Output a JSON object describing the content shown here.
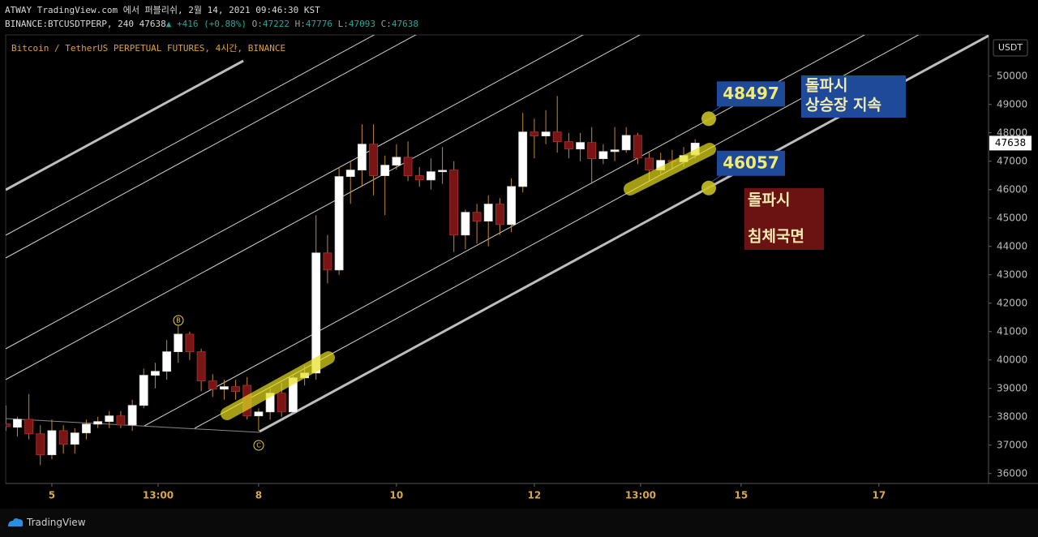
{
  "header": {
    "line1": "ATWAY TradingView.com 에서 퍼블리쉬, 2월 14, 2021 09:46:30 KST",
    "symbol": "BINANCE:BTCUSDTPERP, 240",
    "last": "47638",
    "arrow": "▲",
    "change": "+416 (+0.88%)",
    "ohlc": [
      {
        "label": "O:",
        "value": "47222"
      },
      {
        "label": "H:",
        "value": "47776"
      },
      {
        "label": "L:",
        "value": "47093"
      },
      {
        "label": "C:",
        "value": "47638"
      }
    ]
  },
  "chart_data": {
    "type": "candlestick",
    "title": "Bitcoin / TetherUS PERPETUAL FUTURES, 4시간, BINANCE",
    "currency": "USDT",
    "x": [
      4.333,
      4.5,
      4.667,
      4.833,
      5,
      5.167,
      5.333,
      5.5,
      5.667,
      5.833,
      6,
      6.167,
      6.333,
      6.5,
      6.667,
      6.833,
      7,
      7.167,
      7.333,
      7.5,
      7.667,
      7.833,
      8,
      8.167,
      8.333,
      8.5,
      8.667,
      8.833,
      9,
      9.167,
      9.333,
      9.5,
      9.667,
      9.833,
      10,
      10.167,
      10.333,
      10.5,
      10.667,
      10.833,
      11,
      11.167,
      11.333,
      11.5,
      11.667,
      11.833,
      12,
      12.167,
      12.333,
      12.5,
      12.667,
      12.833,
      13,
      13.167,
      13.333,
      13.5,
      13.667,
      13.833,
      14,
      14.167,
      14.333
    ],
    "open": [
      37750,
      37630,
      37910,
      37400,
      36660,
      37510,
      37030,
      37430,
      37740,
      37830,
      38030,
      37710,
      38400,
      39460,
      39600,
      40290,
      40910,
      40290,
      39260,
      38970,
      39060,
      39110,
      38030,
      38170,
      38830,
      38170,
      39370,
      39540,
      43770,
      43170,
      46460,
      46690,
      47600,
      46490,
      46860,
      47140,
      46490,
      46340,
      46630,
      46690,
      44400,
      45200,
      44890,
      45490,
      44770,
      46110,
      48030,
      47890,
      48030,
      47690,
      47430,
      47660,
      47090,
      47340,
      47400,
      47910,
      47110,
      46690,
      47030,
      46980,
      47222
    ],
    "high": [
      38400,
      38000,
      38800,
      37700,
      37900,
      37700,
      37600,
      37900,
      38000,
      38200,
      38200,
      38600,
      39700,
      39900,
      40700,
      41200,
      41000,
      40400,
      39500,
      39300,
      39300,
      39400,
      38300,
      39000,
      39200,
      39500,
      39800,
      45100,
      44400,
      46800,
      47000,
      48300,
      48300,
      47200,
      47600,
      47700,
      46800,
      47100,
      47500,
      47000,
      45300,
      45500,
      45800,
      45700,
      46400,
      48700,
      48500,
      48800,
      49300,
      48000,
      48000,
      48200,
      47600,
      48200,
      48200,
      48000,
      47300,
      47300,
      47400,
      47500,
      47776
    ],
    "low": [
      37500,
      37300,
      37200,
      36300,
      36500,
      36700,
      36700,
      37200,
      37600,
      37600,
      37600,
      37500,
      38300,
      39000,
      39300,
      39900,
      40000,
      38900,
      38700,
      38600,
      38600,
      37900,
      37500,
      37900,
      38000,
      38100,
      39100,
      39300,
      42700,
      43000,
      45500,
      46100,
      45800,
      45100,
      46700,
      46300,
      46100,
      46000,
      46200,
      43800,
      43900,
      44100,
      44000,
      44400,
      44500,
      45900,
      47100,
      47600,
      47300,
      47100,
      47000,
      46200,
      46900,
      47000,
      47300,
      46900,
      46300,
      46500,
      46700,
      46800,
      47093
    ],
    "close": [
      37650,
      37910,
      37400,
      36660,
      37510,
      37030,
      37430,
      37740,
      37830,
      38030,
      37710,
      38400,
      39460,
      39600,
      40290,
      40910,
      40290,
      39260,
      38970,
      39060,
      38890,
      38030,
      38170,
      38830,
      38170,
      39370,
      39540,
      43770,
      43170,
      46460,
      46690,
      47600,
      46490,
      46860,
      47140,
      46490,
      46340,
      46630,
      46680,
      44400,
      45200,
      44890,
      45490,
      44770,
      46110,
      48030,
      47890,
      48030,
      47690,
      47430,
      47660,
      47090,
      47340,
      47400,
      47910,
      47110,
      46690,
      47030,
      46980,
      47200,
      47638
    ],
    "up_color": "#ffffff",
    "down_color": "#7a1515",
    "wick_color": "#c08a30",
    "xlim": [
      4.33,
      18.59
    ],
    "ylim": [
      35650,
      51450
    ],
    "xticks": [
      {
        "value": 5,
        "label": "5"
      },
      {
        "value": 6.5417,
        "label": "13:00"
      },
      {
        "value": 8,
        "label": "8"
      },
      {
        "value": 10,
        "label": "10"
      },
      {
        "value": 12,
        "label": "12"
      },
      {
        "value": 13.5417,
        "label": "13:00"
      },
      {
        "value": 15,
        "label": "15"
      },
      {
        "value": 17,
        "label": "17"
      }
    ],
    "yticks": [
      36000,
      37000,
      38000,
      39000,
      40000,
      41000,
      42000,
      43000,
      44000,
      45000,
      46000,
      47000,
      48000,
      49000,
      50000
    ],
    "grid": false,
    "levels": [
      48497,
      46057
    ],
    "annotations": {
      "b_marker": "B",
      "c_marker": "C",
      "note_up": [
        "돌파시",
        "상승장 지속"
      ],
      "note_down": [
        "돌파시",
        "침체국면"
      ]
    }
  },
  "footer": {
    "brand": "TradingView"
  }
}
